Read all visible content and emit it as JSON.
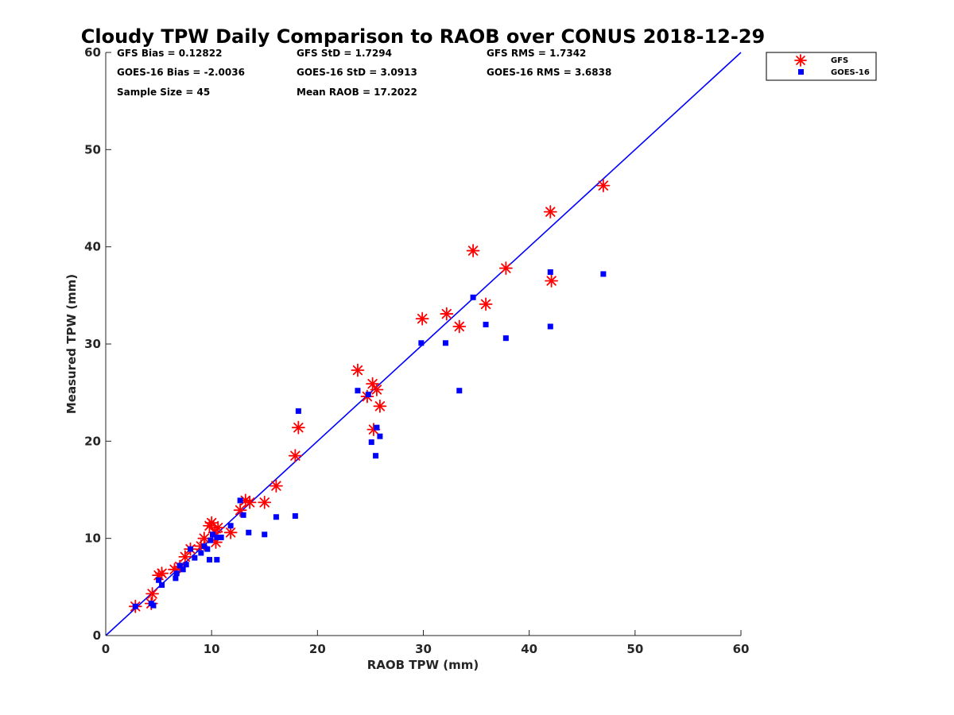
{
  "chart_data": {
    "type": "scatter",
    "title": "Cloudy TPW Daily Comparison to RAOB over CONUS 2018-12-29",
    "xlabel": "RAOB TPW (mm)",
    "ylabel": "Measured TPW (mm)",
    "xlim": [
      0,
      60
    ],
    "ylim": [
      0,
      60
    ],
    "xticks": [
      "0",
      "10",
      "20",
      "30",
      "40",
      "50",
      "60"
    ],
    "yticks": [
      "0",
      "10",
      "20",
      "30",
      "40",
      "50",
      "60"
    ],
    "grid": false,
    "legend_position": "top-right-outside",
    "reference_line": {
      "x": [
        0,
        60
      ],
      "y": [
        0,
        60
      ],
      "color": "#0000ff"
    },
    "stats": [
      "GFS Bias = 0.12822",
      "GFS StD = 1.7294",
      "GFS RMS = 1.7342",
      "GOES-16 Bias = -2.0036",
      "GOES-16 StD = 3.0913",
      "GOES-16 RMS = 3.6838",
      "Sample Size = 45",
      "Mean RAOB = 17.2022"
    ],
    "series": [
      {
        "name": "GFS",
        "marker": "asterisk",
        "color": "#ff0000",
        "points": [
          [
            2.8,
            3.0
          ],
          [
            4.3,
            3.3
          ],
          [
            4.4,
            4.3
          ],
          [
            5.0,
            6.2
          ],
          [
            5.3,
            6.4
          ],
          [
            6.5,
            6.8
          ],
          [
            7.0,
            7.1
          ],
          [
            7.5,
            8.1
          ],
          [
            8.0,
            8.9
          ],
          [
            9.0,
            9.2
          ],
          [
            9.3,
            10.0
          ],
          [
            9.8,
            11.3
          ],
          [
            10.0,
            11.6
          ],
          [
            10.3,
            10.6
          ],
          [
            10.4,
            9.6
          ],
          [
            10.6,
            11.1
          ],
          [
            11.8,
            10.6
          ],
          [
            12.7,
            12.9
          ],
          [
            13.2,
            13.9
          ],
          [
            13.6,
            13.7
          ],
          [
            15.0,
            13.7
          ],
          [
            16.1,
            15.4
          ],
          [
            17.9,
            18.5
          ],
          [
            18.2,
            21.4
          ],
          [
            23.8,
            27.3
          ],
          [
            24.7,
            24.6
          ],
          [
            25.2,
            25.9
          ],
          [
            25.3,
            21.2
          ],
          [
            25.6,
            25.3
          ],
          [
            25.9,
            23.6
          ],
          [
            29.9,
            32.6
          ],
          [
            32.2,
            33.1
          ],
          [
            33.4,
            31.8
          ],
          [
            34.7,
            39.6
          ],
          [
            35.9,
            34.1
          ],
          [
            37.8,
            37.8
          ],
          [
            42.0,
            43.6
          ],
          [
            42.1,
            36.5
          ],
          [
            47.0,
            46.3
          ]
        ]
      },
      {
        "name": "GOES-16",
        "marker": "square",
        "color": "#0000ff",
        "points": [
          [
            2.8,
            3.0
          ],
          [
            4.3,
            3.3
          ],
          [
            4.5,
            3.1
          ],
          [
            5.0,
            5.7
          ],
          [
            5.3,
            5.2
          ],
          [
            6.6,
            5.9
          ],
          [
            6.7,
            6.4
          ],
          [
            7.0,
            7.2
          ],
          [
            7.3,
            6.8
          ],
          [
            7.6,
            7.3
          ],
          [
            8.0,
            8.9
          ],
          [
            8.4,
            8.0
          ],
          [
            9.0,
            8.5
          ],
          [
            9.3,
            9.2
          ],
          [
            9.6,
            8.9
          ],
          [
            9.8,
            7.8
          ],
          [
            9.9,
            9.8
          ],
          [
            10.1,
            10.4
          ],
          [
            10.5,
            10.1
          ],
          [
            10.5,
            7.8
          ],
          [
            10.9,
            10.1
          ],
          [
            11.8,
            11.3
          ],
          [
            12.7,
            13.9
          ],
          [
            13.0,
            12.4
          ],
          [
            13.5,
            10.6
          ],
          [
            15.0,
            10.4
          ],
          [
            16.1,
            12.2
          ],
          [
            17.9,
            12.3
          ],
          [
            18.2,
            23.1
          ],
          [
            23.8,
            25.2
          ],
          [
            24.8,
            24.8
          ],
          [
            25.1,
            19.9
          ],
          [
            25.5,
            18.5
          ],
          [
            25.6,
            21.4
          ],
          [
            25.9,
            20.5
          ],
          [
            29.8,
            30.1
          ],
          [
            32.1,
            30.1
          ],
          [
            33.4,
            25.2
          ],
          [
            34.7,
            34.8
          ],
          [
            35.9,
            32.0
          ],
          [
            37.8,
            30.6
          ],
          [
            42.0,
            37.4
          ],
          [
            42.0,
            31.8
          ],
          [
            47.0,
            37.2
          ]
        ]
      }
    ]
  }
}
